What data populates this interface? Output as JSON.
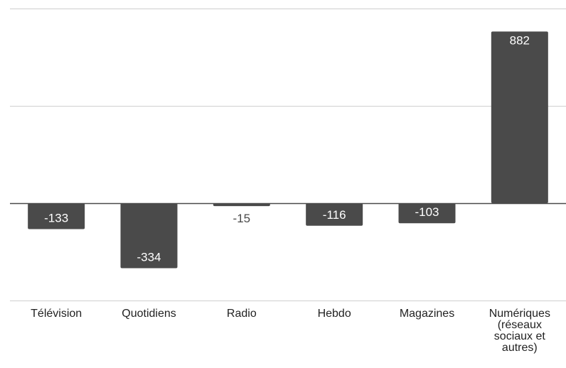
{
  "chart_data": {
    "type": "bar",
    "title": "",
    "xlabel": "",
    "ylabel": "",
    "categories": [
      "Télévision",
      "Quotidiens",
      "Radio",
      "Hebdo",
      "Magazines",
      "Numériques (réseaux sociaux et autres)"
    ],
    "category_lines": [
      [
        "Télévision"
      ],
      [
        "Quotidiens"
      ],
      [
        "Radio"
      ],
      [
        "Hebdo"
      ],
      [
        "Magazines"
      ],
      [
        "Numériques",
        "(réseaux",
        "sociaux et",
        "autres)"
      ]
    ],
    "values": [
      -133,
      -334,
      -15,
      -116,
      -103,
      882
    ],
    "value_labels": [
      "-133",
      "-334",
      "-15",
      "-116",
      "-103",
      "882"
    ],
    "ylim": [
      -500,
      1000
    ],
    "grid": true,
    "bar_color": "#4a4a4a"
  }
}
